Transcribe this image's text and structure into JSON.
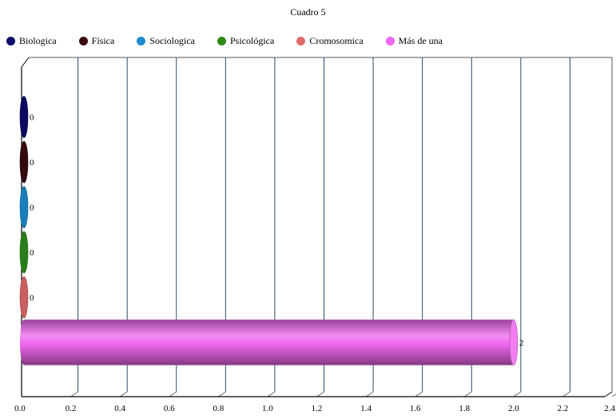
{
  "chart_data": {
    "type": "bar",
    "orientation": "horizontal",
    "title": "Cuadro 5",
    "categories": [
      "Biologica",
      "Física",
      "Sociologica",
      "Psicológica",
      "Cromosomica",
      "Más de una"
    ],
    "series": [
      {
        "name": "Biologica",
        "value": 0,
        "color": "#0b0b6b"
      },
      {
        "name": "Física",
        "value": 0,
        "color": "#3a0a10"
      },
      {
        "name": "Sociologica",
        "value": 0,
        "color": "#1c8ccf"
      },
      {
        "name": "Psicológica",
        "value": 0,
        "color": "#2e8b1a"
      },
      {
        "name": "Cromosomica",
        "value": 0,
        "color": "#e06a6a"
      },
      {
        "name": "Más de una",
        "value": 2,
        "color": "#ee66ee"
      }
    ],
    "data_labels": [
      "0",
      "0",
      "0",
      "0",
      "0",
      "2"
    ],
    "xlim": [
      0,
      2.4
    ],
    "xticks": [
      "0.0",
      "0.2",
      "0.4",
      "0.6",
      "0.8",
      "1.0",
      "1.2",
      "1.4",
      "1.6",
      "1.8",
      "2.0",
      "2.2",
      "2.4"
    ],
    "xlabel": "",
    "ylabel": "",
    "grid": "vertical",
    "legend_position": "top-left",
    "style": "3d-cylinder"
  }
}
